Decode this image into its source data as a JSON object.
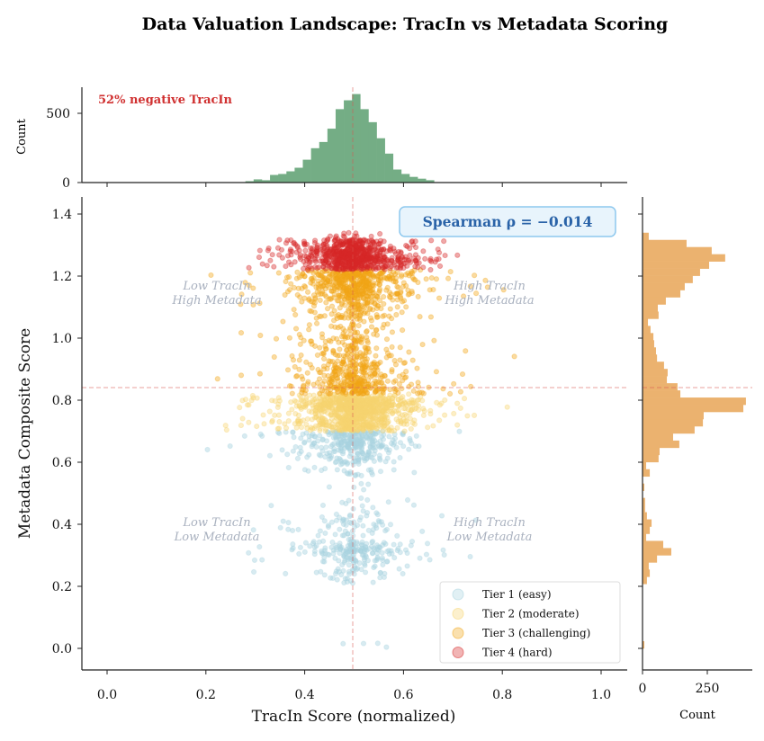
{
  "chart_data": [
    {
      "type": "scatter",
      "title": "Data Valuation Landscape: TracIn vs Metadata Scoring",
      "xlabel": "TracIn Score (normalized)",
      "ylabel": "Metadata Composite Score",
      "xlim": [
        -0.05,
        1.05
      ],
      "ylim": [
        -0.07,
        1.45
      ],
      "x_ticks": [
        "0.0",
        "0.2",
        "0.4",
        "0.6",
        "0.8",
        "1.0"
      ],
      "y_ticks": [
        "0.0",
        "0.2",
        "0.4",
        "0.6",
        "0.8",
        "1.0",
        "1.2",
        "1.4"
      ],
      "grid": false,
      "legend_position": "lower-right",
      "reference_lines": {
        "x": 0.5,
        "y": 0.84,
        "color": "#d9534f"
      },
      "annotation": "Spearman ρ = −0.014",
      "quadrant_labels": {
        "top_left": [
          "Low TracIn",
          "High Metadata"
        ],
        "top_right": [
          "High TracIn",
          "High Metadata"
        ],
        "bottom_left": [
          "Low TracIn",
          "Low Metadata"
        ],
        "bottom_right": [
          "High TracIn",
          "Low Metadata"
        ]
      },
      "series": [
        {
          "name": "Tier 1 (easy)",
          "color": "#a8d3e0",
          "metadata_range": [
            0.0,
            0.72
          ],
          "tracin_center": 0.5
        },
        {
          "name": "Tier 2 (moderate)",
          "color": "#f7d571",
          "metadata_range": [
            0.7,
            0.84
          ],
          "tracin_center": 0.5
        },
        {
          "name": "Tier 3 (challenging)",
          "color": "#f2a516",
          "metadata_range": [
            0.82,
            1.22
          ],
          "tracin_center": 0.5
        },
        {
          "name": "Tier 4 (hard)",
          "color": "#d62728",
          "metadata_range": [
            1.22,
            1.38
          ],
          "tracin_center": 0.5
        }
      ]
    },
    {
      "type": "bar",
      "orientation": "vertical",
      "ylabel": "Count",
      "y_ticks": [
        "0",
        "500"
      ],
      "ylim": [
        0,
        690
      ],
      "color": "#74ad85",
      "annotation": "52% negative TracIn",
      "bin_start": 0.28,
      "bin_width": 0.0166,
      "values": [
        10,
        23,
        17,
        55,
        62,
        81,
        107,
        165,
        248,
        293,
        389,
        530,
        594,
        639,
        530,
        436,
        320,
        209,
        94,
        62,
        41,
        28,
        17
      ]
    },
    {
      "type": "bar",
      "orientation": "horizontal",
      "xlabel": "Count",
      "x_ticks": [
        "0",
        "250"
      ],
      "xlim": [
        0,
        420
      ],
      "color": "#ebb26f",
      "bin_start": 0.0,
      "bin_width": 0.0231,
      "values": [
        7,
        0,
        0,
        0,
        0,
        0,
        0,
        0,
        0,
        17,
        28,
        24,
        56,
        111,
        80,
        14,
        28,
        35,
        17,
        10,
        10,
        0,
        7,
        0,
        28,
        14,
        62,
        66,
        142,
        118,
        201,
        233,
        236,
        389,
        399,
        146,
        135,
        94,
        97,
        83,
        56,
        52,
        45,
        42,
        31,
        21,
        62,
        59,
        90,
        146,
        163,
        194,
        222,
        257,
        319,
        267,
        170,
        24
      ]
    }
  ]
}
